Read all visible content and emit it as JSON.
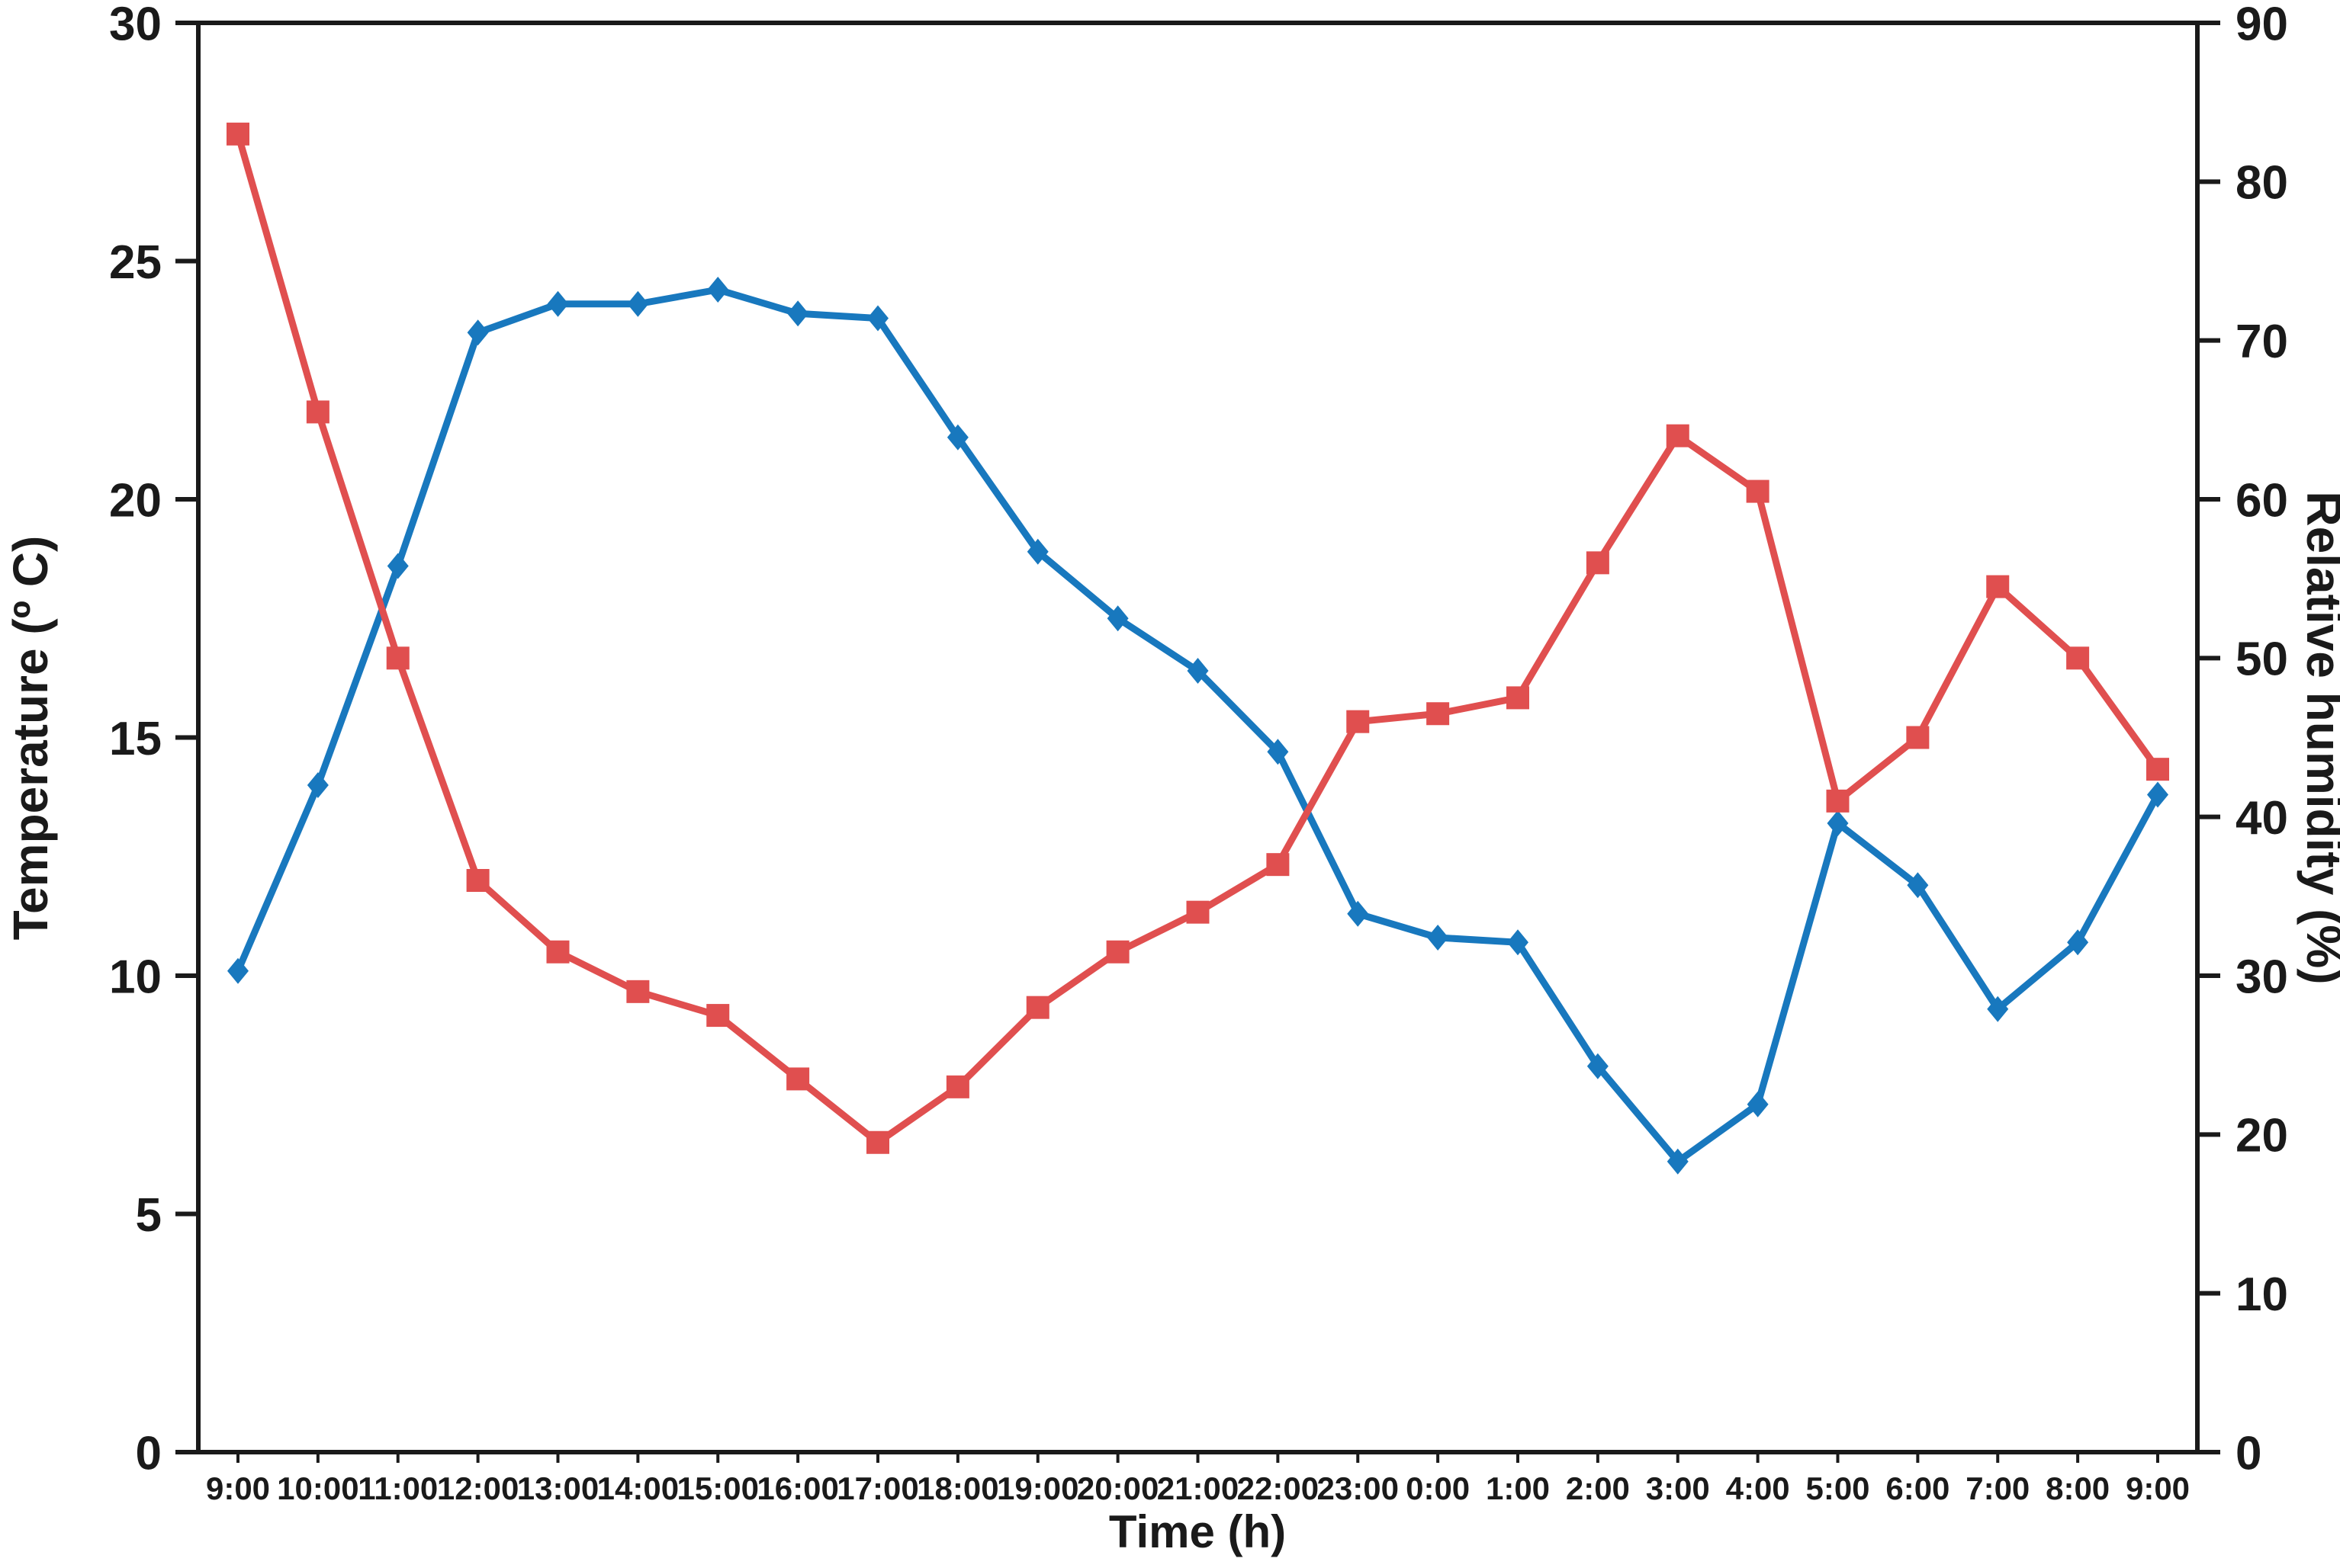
{
  "chart_data": {
    "type": "line",
    "title": "",
    "xlabel": "Time (h)",
    "x": [
      "9:00",
      "10:00",
      "11:00",
      "12:00",
      "13:00",
      "14:00",
      "15:00",
      "16:00",
      "17:00",
      "18:00",
      "19:00",
      "20:00",
      "21:00",
      "22:00",
      "23:00",
      "0:00",
      "1:00",
      "2:00",
      "3:00",
      "4:00",
      "5:00",
      "6:00",
      "7:00",
      "8:00",
      "9:00"
    ],
    "series": [
      {
        "name": "Temperature",
        "axis": "left",
        "color": "#1878BE",
        "marker": "diamond",
        "values": [
          10.1,
          14.0,
          18.6,
          23.5,
          24.1,
          24.1,
          24.4,
          23.9,
          23.8,
          21.3,
          18.9,
          17.5,
          16.4,
          14.7,
          11.3,
          10.8,
          10.7,
          8.1,
          6.1,
          7.3,
          13.2,
          11.9,
          9.3,
          10.7,
          13.8
        ]
      },
      {
        "name": "Relative humidity",
        "axis": "right",
        "color": "#E04F4F",
        "marker": "square",
        "values": [
          83,
          65.5,
          50,
          36,
          31.5,
          29,
          27.5,
          23.5,
          19.5,
          23,
          28,
          31.5,
          34,
          37,
          46,
          46.5,
          47.5,
          56,
          64,
          60.5,
          41,
          45,
          54.5,
          50,
          43
        ]
      }
    ],
    "left_axis": {
      "label": "Temperature (º C)",
      "min": 0,
      "max": 30,
      "ticks": [
        0,
        5,
        10,
        15,
        20,
        25,
        30
      ],
      "color": "#1878BE"
    },
    "right_axis": {
      "label": "Relative humidity (%)",
      "min": 0,
      "max": 90,
      "ticks": [
        0,
        10,
        20,
        30,
        40,
        50,
        60,
        70,
        80,
        90
      ],
      "color": "#E04F4F"
    },
    "grid": false,
    "legend": "none",
    "frame_color": "#1a1a1a",
    "background": "#FFFFFF"
  }
}
